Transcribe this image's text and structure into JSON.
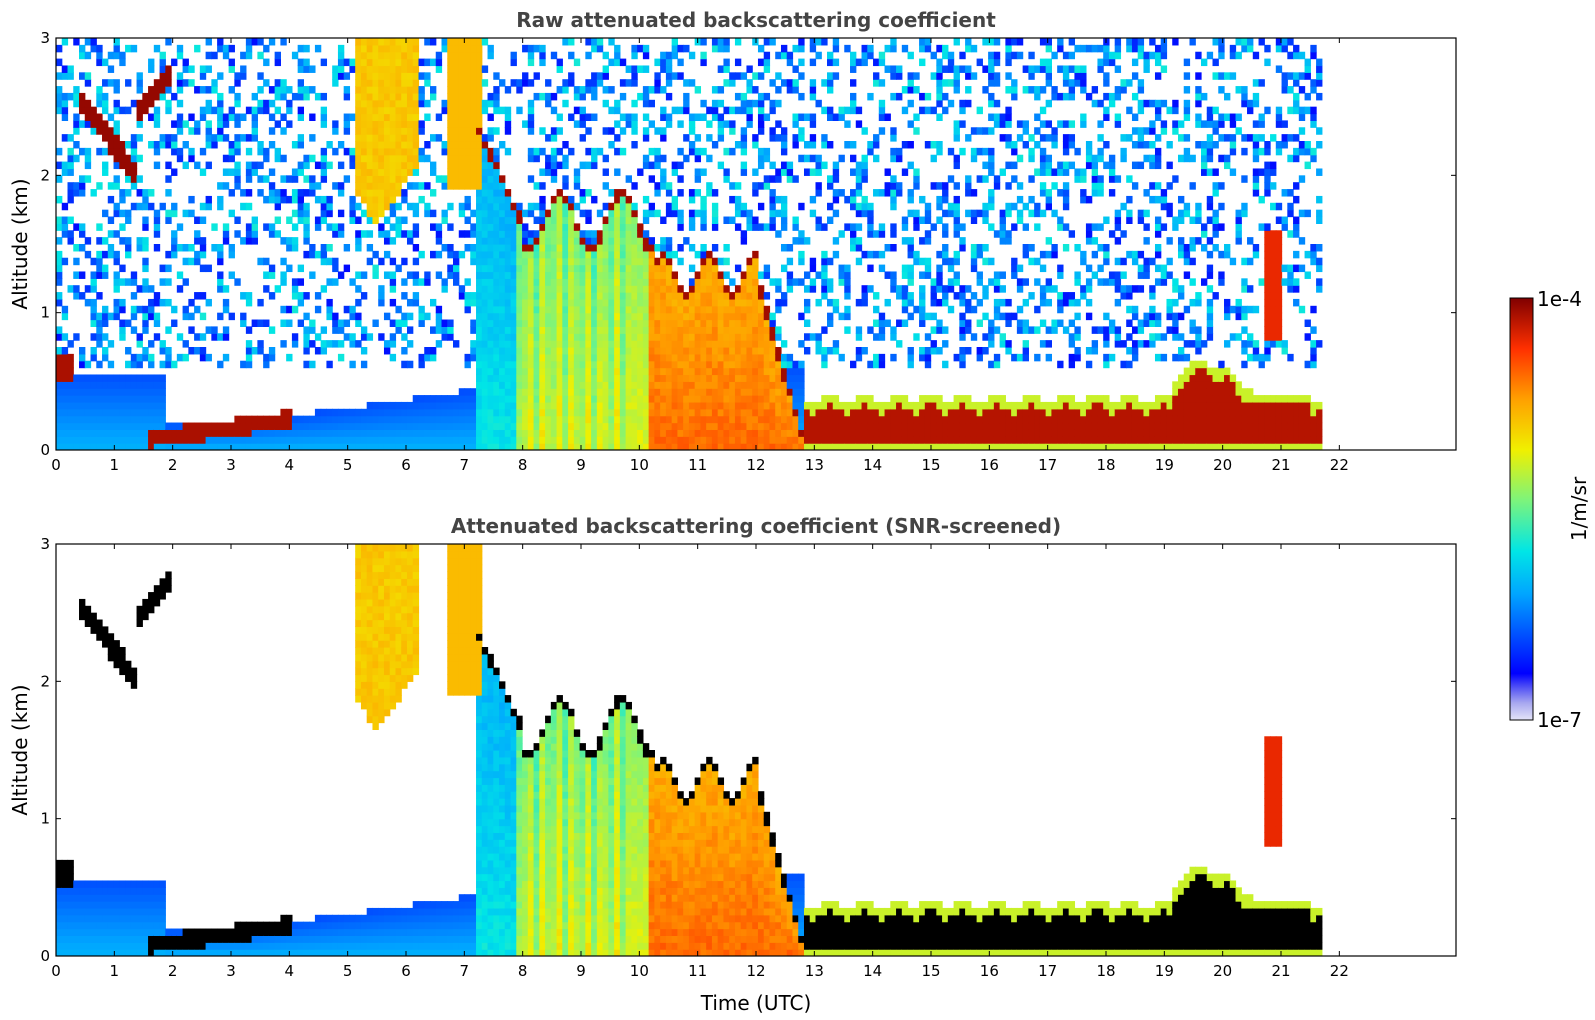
{
  "chart_data": [
    {
      "type": "heatmap",
      "title": "Raw attenuated backscattering coefficient",
      "xlabel": "",
      "ylabel": "Altitude (km)",
      "xlim": [
        0,
        24
      ],
      "ylim": [
        0,
        3
      ],
      "x_ticks": [
        0,
        1,
        2,
        3,
        4,
        5,
        6,
        7,
        8,
        9,
        10,
        11,
        12,
        13,
        14,
        15,
        16,
        17,
        18,
        19,
        20,
        21,
        22
      ],
      "y_ticks": [
        0,
        1,
        2,
        3
      ],
      "data_end_time": 21.7,
      "grid": false,
      "colorscale": "jet",
      "color_range": [
        "1e-7",
        "1e-4"
      ],
      "screened": false
    },
    {
      "type": "heatmap",
      "title": "Attenuated backscattering coefficient (SNR-screened)",
      "xlabel": "Time (UTC)",
      "ylabel": "Altitude (km)",
      "xlim": [
        0,
        24
      ],
      "ylim": [
        0,
        3
      ],
      "x_ticks": [
        0,
        1,
        2,
        3,
        4,
        5,
        6,
        7,
        8,
        9,
        10,
        11,
        12,
        13,
        14,
        15,
        16,
        17,
        18,
        19,
        20,
        21,
        22
      ],
      "y_ticks": [
        0,
        1,
        2,
        3
      ],
      "data_end_time": 21.7,
      "grid": false,
      "colorscale": "jet",
      "color_range": [
        "1e-7",
        "1e-4"
      ],
      "screened": true
    }
  ],
  "colorbar": {
    "max_label": "1e-4",
    "min_label": "1e-7",
    "unit_label": "1/m/sr"
  }
}
